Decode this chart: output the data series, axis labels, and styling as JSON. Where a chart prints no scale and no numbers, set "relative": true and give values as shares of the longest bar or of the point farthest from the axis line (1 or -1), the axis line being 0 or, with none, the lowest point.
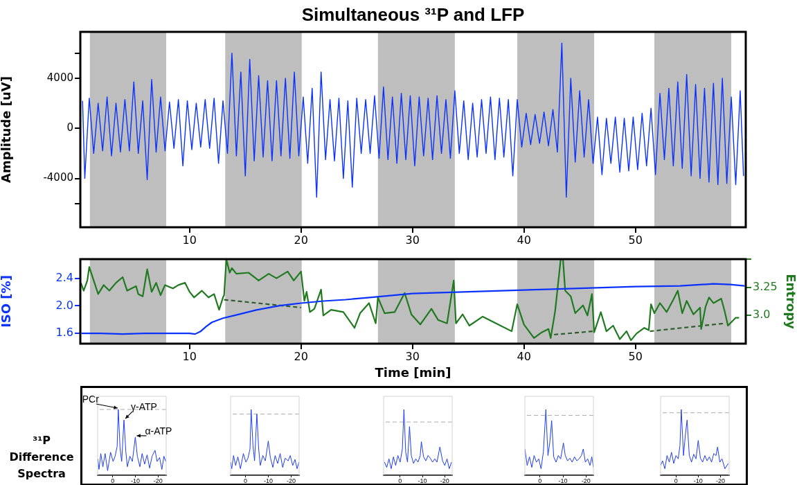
{
  "chart_data": [
    {
      "type": "line",
      "title": "Simultaneous ³¹P and LFP",
      "ylabel": "Amplitude [uV]",
      "marker": "none",
      "x": [
        0.4,
        0.6,
        1,
        1.4,
        1.8,
        2.2,
        2.6,
        3,
        3.4,
        3.8,
        4.2,
        4.6,
        5,
        5.4,
        5.8,
        6.2,
        6.6,
        7,
        7.4,
        7.8,
        8.2,
        8.6,
        9,
        9.4,
        9.8,
        10.2,
        10.6,
        11,
        11.4,
        11.8,
        12.2,
        12.6,
        13,
        13.4,
        13.8,
        14.2,
        14.6,
        15,
        15.4,
        15.8,
        16.2,
        16.6,
        17,
        17.4,
        17.8,
        18.2,
        18.6,
        19,
        19.4,
        19.8,
        20.2,
        20.6,
        21,
        21.4,
        21.8,
        22.2,
        22.6,
        23,
        23.4,
        23.8,
        24.2,
        24.6,
        25,
        25.4,
        25.8,
        26.2,
        26.6,
        27,
        27.4,
        27.8,
        28.2,
        28.6,
        29,
        29.4,
        29.8,
        30.2,
        30.6,
        31,
        31.4,
        31.8,
        32.2,
        32.6,
        33,
        33.4,
        33.8,
        34.2,
        34.6,
        35,
        35.4,
        35.8,
        36.2,
        36.6,
        37,
        37.4,
        37.8,
        38.2,
        38.6,
        39,
        39.4,
        39.8,
        40.2,
        40.6,
        41,
        41.4,
        41.8,
        42.2,
        42.6,
        43,
        43.4,
        43.8,
        44.2,
        44.6,
        45,
        45.4,
        45.8,
        46.2,
        46.6,
        47,
        47.4,
        47.8,
        48.2,
        48.6,
        49,
        49.4,
        49.8,
        50.2,
        50.6,
        51,
        51.4,
        51.8,
        52.2,
        52.6,
        53,
        53.4,
        53.8,
        54.2,
        54.6,
        55,
        55.4,
        55.8,
        56.2,
        56.6,
        57,
        57.4,
        57.8,
        58.2,
        58.6,
        59,
        59.4,
        59.7
      ],
      "series": [
        {
          "color": "#0a32ff",
          "values": [
            2200,
            -4000,
            2400,
            -2000,
            2000,
            -1800,
            2500,
            -2200,
            2000,
            -1900,
            2300,
            -1800,
            3700,
            -2000,
            2200,
            -4100,
            3900,
            -1900,
            2500,
            -1800,
            2100,
            -1600,
            2300,
            -3000,
            2200,
            -1700,
            2000,
            -1500,
            2300,
            -1600,
            2400,
            -2800,
            2200,
            -2000,
            6000,
            -2200,
            4500,
            -3800,
            5500,
            -2600,
            4200,
            -2300,
            3800,
            -2600,
            3800,
            -2200,
            4000,
            -2400,
            4500,
            -2200,
            2500,
            -2800,
            3200,
            -5500,
            4500,
            -2500,
            2300,
            -2600,
            2400,
            -4000,
            2200,
            -4700,
            2400,
            -2000,
            2300,
            -2000,
            2600,
            -2400,
            3300,
            -2500,
            2500,
            -2800,
            2800,
            -2500,
            2600,
            -3000,
            2500,
            -2200,
            2400,
            -2500,
            2600,
            -2000,
            2300,
            -2400,
            3000,
            -2000,
            2200,
            -2500,
            2000,
            -2300,
            2300,
            -2000,
            2500,
            -2500,
            2400,
            -2300,
            2300,
            -3800,
            2300,
            -1500,
            1200,
            -1300,
            1100,
            -1200,
            1300,
            -1400,
            1500,
            -1900,
            6800,
            -5500,
            4000,
            -2700,
            3000,
            -2300,
            2300,
            -2800,
            900,
            -3700,
            800,
            -2800,
            900,
            -3500,
            800,
            -3400,
            900,
            -3300,
            1200,
            -3000,
            1600,
            -3700,
            2800,
            -2500,
            3200,
            -3000,
            3700,
            -3200,
            4300,
            -3800,
            3500,
            -4000,
            3200,
            -4300,
            3600,
            -4500,
            4000,
            -4400,
            2500,
            -4500,
            3000,
            -3800
          ]
        }
      ],
      "xlim": [
        0.2,
        59.9
      ],
      "xticks": [
        10,
        20,
        30,
        40,
        50
      ],
      "ylim": [
        -7900,
        7700
      ],
      "yticks": [
        {
          "value": -6000,
          "label": null
        },
        -4000,
        0,
        4000,
        {
          "value": 6000,
          "label": null
        }
      ],
      "bands": [
        {
          "axis": "x",
          "from": 1.06,
          "to": 7.9,
          "color": "#bebebe"
        },
        {
          "axis": "x",
          "from": 13.2,
          "to": 20.06,
          "color": "#bebebe"
        },
        {
          "axis": "x",
          "from": 26.9,
          "to": 33.8,
          "color": "#bebebe"
        },
        {
          "axis": "x",
          "from": 39.4,
          "to": 46.3,
          "color": "#bebebe"
        },
        {
          "axis": "x",
          "from": 51.7,
          "to": 58.6,
          "color": "#bebebe"
        }
      ]
    },
    {
      "type": "line",
      "xlabel": "Time [min]",
      "ylabel": "ISO [%]",
      "y2label": "Entropy",
      "marker": "none",
      "series": [
        {
          "color": "#0a32ff",
          "x": [
            0.3,
            2,
            4,
            6,
            8,
            10,
            10.5,
            11,
            11.5,
            12,
            13,
            14,
            15,
            16,
            17,
            18,
            19,
            20,
            22,
            24,
            26,
            28,
            30,
            34,
            38,
            42,
            46,
            50,
            54,
            57,
            58.5,
            59.8
          ],
          "values": [
            1.6,
            1.6,
            1.59,
            1.6,
            1.6,
            1.6,
            1.59,
            1.63,
            1.7,
            1.76,
            1.82,
            1.86,
            1.9,
            1.94,
            1.97,
            2.0,
            2.02,
            2.04,
            2.07,
            2.09,
            2.12,
            2.15,
            2.18,
            2.2,
            2.22,
            2.24,
            2.26,
            2.28,
            2.29,
            2.32,
            2.31,
            2.29
          ]
        },
        {
          "color": "#1f7a1f",
          "axis": "y2",
          "x": [
            0.25,
            0.5,
            0.83,
            1.0,
            1.8,
            2.3,
            2.8,
            3.4,
            4.0,
            4.4,
            5.2,
            5.4,
            5.8,
            6.2,
            6.6,
            7.0,
            7.4,
            7.8,
            8.5,
            9.0,
            9.6,
            10.0,
            10.4,
            11.1,
            11.7,
            12.2,
            12.65,
            13.0,
            13.1,
            13.3,
            13.6,
            13.8,
            14.2,
            15.3,
            16.2,
            17.1,
            17.8,
            18.8,
            19.35,
            20.0,
            20.3,
            20.5,
            20.8,
            21.2,
            21.8,
            22.0,
            22.7,
            23.8,
            24.8,
            25.3,
            26.1,
            26.7,
            26.9,
            27.5,
            28.4,
            29.3,
            29.9,
            30.7,
            31.7,
            32.3,
            33.1,
            33.7,
            33.9,
            34.5,
            35.1,
            36.3,
            37.5,
            38.9,
            39.4,
            40.0,
            40.9,
            41.6,
            42.2,
            42.4,
            42.8,
            43.3,
            43.5,
            43.7,
            44.2,
            44.6,
            45.3,
            45.7,
            46.1,
            46.3,
            46.9,
            47.4,
            48.0,
            48.6,
            49.2,
            49.6,
            50.1,
            50.8,
            51.2,
            51.4,
            51.7,
            52.2,
            52.8,
            53.4,
            53.8,
            54.2,
            54.6,
            55.2,
            55.8,
            55.9,
            56.3,
            56.6,
            57.0,
            57.7,
            58.0,
            58.3,
            58.5,
            59.0,
            59.3
          ],
          "values": [
            3.29,
            3.22,
            3.31,
            3.43,
            3.19,
            3.27,
            3.22,
            3.29,
            3.34,
            3.22,
            3.26,
            3.19,
            3.17,
            3.41,
            3.21,
            3.29,
            3.18,
            3.27,
            3.24,
            3.27,
            3.29,
            3.21,
            3.16,
            3.22,
            3.16,
            3.19,
            3.05,
            3.16,
            3.18,
            3.5,
            3.38,
            3.42,
            3.37,
            3.38,
            3.31,
            3.37,
            3.33,
            3.39,
            3.31,
            3.39,
            3.13,
            3.21,
            3.03,
            3.06,
            3.23,
            3.0,
            3.05,
            3.03,
            2.89,
            3.02,
            3.11,
            2.93,
            3.16,
            3.02,
            3.03,
            3.2,
            3.01,
            2.92,
            3.06,
            2.96,
            2.93,
            3.31,
            2.93,
            3.01,
            2.91,
            2.99,
            2.93,
            2.86,
            3.1,
            2.92,
            2.8,
            2.85,
            2.88,
            2.8,
            3.04,
            3.5,
            3.5,
            3.22,
            3.17,
            3.02,
            3.09,
            3.0,
            3.19,
            2.85,
            3.03,
            2.86,
            2.91,
            2.79,
            2.86,
            2.78,
            2.84,
            2.89,
            2.87,
            3.1,
            3.02,
            3.11,
            3.03,
            3.14,
            3.22,
            3.02,
            3.13,
            3.01,
            3.07,
            2.88,
            3.08,
            3.16,
            3.11,
            3.15,
            3.04,
            2.91,
            2.93,
            2.98,
            2.98
          ]
        },
        {
          "color": "#2e5e2e",
          "axis": "y2",
          "line_style": "dashed",
          "x": [
            13.1,
            20.0,
            31,
            42.7,
            46.2,
            49,
            51.3,
            58.0
          ],
          "values": [
            3.14,
            3.07,
            null,
            2.83,
            2.86,
            null,
            2.86,
            2.93
          ]
        }
      ],
      "xlim": [
        0.2,
        59.9
      ],
      "xticks": [
        10,
        20,
        30,
        40,
        50
      ],
      "ylim": [
        1.45,
        2.68
      ],
      "yticks": [
        1.6,
        {
          "value": 2,
          "label": "2.0"
        },
        2.4
      ],
      "y2lim": [
        2.75,
        3.5
      ],
      "y2ticks": [
        {
          "value": 3,
          "label": "3.0"
        },
        3.25,
        {
          "value": 3.5,
          "label": null
        }
      ],
      "bands": [
        {
          "axis": "x",
          "from": 1.06,
          "to": 7.9,
          "color": "#bebebe"
        },
        {
          "axis": "x",
          "from": 13.2,
          "to": 20.06,
          "color": "#bebebe"
        },
        {
          "axis": "x",
          "from": 26.9,
          "to": 33.8,
          "color": "#bebebe"
        },
        {
          "axis": "x",
          "from": 39.4,
          "to": 46.3,
          "color": "#bebebe"
        },
        {
          "axis": "x",
          "from": 51.7,
          "to": 58.6,
          "color": "#bebebe"
        }
      ]
    },
    {
      "type": "line",
      "relative": true,
      "marker": "none",
      "ylabel": "³¹P Difference Spectra",
      "x": [
        6.5,
        6.0,
        5.2,
        4.3,
        3.3,
        2.2,
        0.9,
        -0.2,
        -1.1,
        -2.0,
        -2.5,
        -3.3,
        -4.0,
        -5.0,
        -5.8,
        -6.5,
        -7.6,
        -8.7,
        -10.0,
        -10.9,
        -12.0,
        -13.0,
        -14.1,
        -15.2,
        -16.3,
        -17.4,
        -18.7,
        -19.6,
        -20.7,
        -21.7,
        -22.6,
        -23.4
      ],
      "series": [
        {
          "color": "#1f3cf0",
          "values": [
            0.25,
            0.09,
            0.33,
            0.13,
            0.33,
            0.07,
            0.35,
            0.21,
            0.29,
            0.44,
            1,
            0.4,
            0.21,
            0.84,
            0.37,
            0.13,
            0.29,
            0.21,
            0.58,
            0.29,
            0.13,
            0.33,
            0.17,
            0.31,
            0.11,
            0.29,
            0.38,
            0.21,
            0.27,
            0.09,
            0.29,
            0.21
          ]
        }
      ],
      "xlim": [
        6.6,
        -23.6
      ],
      "xticks": [
        0,
        -10,
        -20
      ],
      "ref_lines": [
        {
          "axis": "y",
          "value": 1,
          "color": "#aaaaaa",
          "line_style": "dashed"
        }
      ],
      "annotations": [
        {
          "text": "PCr",
          "x": -2.5,
          "y": 1
        },
        {
          "text": "γ-ATP",
          "x": -5.0,
          "y": 0.84
        },
        {
          "text": "α-ATP",
          "x": -10.0,
          "y": 0.58
        }
      ]
    },
    {
      "type": "line",
      "relative": true,
      "marker": "none",
      "x": [
        6.5,
        6.0,
        5.2,
        4.3,
        3.3,
        2.2,
        0.9,
        -0.2,
        -1.1,
        -2.0,
        -2.5,
        -3.3,
        -4.0,
        -5.0,
        -5.8,
        -6.5,
        -7.6,
        -8.7,
        -10.0,
        -10.9,
        -12.0,
        -13.0,
        -14.1,
        -15.2,
        -16.3,
        -17.4,
        -18.7,
        -19.6,
        -20.7,
        -21.7,
        -22.6,
        -23.4
      ],
      "series": [
        {
          "color": "#1f3cf0",
          "values": [
            0.2,
            0.1,
            0.3,
            0.15,
            0.28,
            0.1,
            0.33,
            0.2,
            0.26,
            0.4,
            1.0,
            0.45,
            0.22,
            0.93,
            0.4,
            0.15,
            0.3,
            0.22,
            0.52,
            0.27,
            0.12,
            0.3,
            0.18,
            0.33,
            0.12,
            0.26,
            0.22,
            0.3,
            0.15,
            0.24,
            0.1,
            0.2
          ]
        }
      ],
      "xlim": [
        6.5,
        -23.5
      ],
      "xticks": [
        0,
        -10,
        -20
      ],
      "ref_lines": [
        {
          "axis": "y",
          "value": 0.93,
          "color": "#aaaaaa",
          "line_style": "dashed"
        }
      ]
    },
    {
      "type": "line",
      "relative": true,
      "marker": "none",
      "x": [
        7,
        6,
        5,
        4,
        3,
        2,
        1,
        0,
        -1,
        -1.7,
        -2.5,
        -3.3,
        -4.2,
        -5,
        -6,
        -7,
        -8,
        -9,
        -9.5,
        -10.5,
        -11.5,
        -12.5,
        -13.5,
        -14.5,
        -15.5,
        -16.5,
        -17.8,
        -19,
        -20,
        -21,
        -22,
        -23
      ],
      "series": [
        {
          "color": "#1f3cf0",
          "values": [
            0.2,
            0.12,
            0.25,
            0.1,
            0.28,
            0.15,
            0.3,
            0.2,
            0.4,
            1.0,
            0.35,
            0.2,
            0.74,
            0.3,
            0.18,
            0.25,
            0.2,
            0.3,
            0.51,
            0.28,
            0.22,
            0.3,
            0.26,
            0.2,
            0.25,
            0.2,
            0.43,
            0.22,
            0.15,
            0.25,
            0.1,
            0.2
          ]
        }
      ],
      "xlim": [
        7.4,
        -23.3
      ],
      "xticks": [
        0,
        -10,
        -20
      ],
      "ref_lines": [
        {
          "axis": "y",
          "value": 0.81,
          "color": "#aaaaaa",
          "line_style": "dashed"
        }
      ]
    },
    {
      "type": "line",
      "relative": true,
      "marker": "none",
      "x": [
        6.5,
        5.5,
        4.5,
        3.5,
        2.5,
        1.5,
        0.5,
        -0.5,
        -1.5,
        -2.6,
        -3.5,
        -4.3,
        -5.1,
        -6,
        -7,
        -8,
        -9,
        -10.2,
        -11,
        -12,
        -13,
        -14,
        -15,
        -16,
        -17,
        -18,
        -18.8,
        -19.7,
        -20.7,
        -21.7,
        -22.5,
        -23.2
      ],
      "series": [
        {
          "color": "#1f3cf0",
          "values": [
            0.4,
            0.15,
            0.28,
            0.12,
            0.3,
            0.2,
            0.25,
            0.1,
            0.35,
            1.0,
            0.3,
            0.5,
            0.83,
            0.28,
            0.2,
            0.3,
            0.25,
            0.49,
            0.3,
            0.22,
            0.26,
            0.2,
            0.28,
            0.22,
            0.25,
            0.3,
            0.4,
            0.2,
            0.25,
            0.15,
            0.28,
            0.12
          ]
        }
      ],
      "xlim": [
        6.5,
        -23.2
      ],
      "xticks": [
        0,
        -10,
        -20
      ],
      "ref_lines": [
        {
          "axis": "y",
          "value": 0.91,
          "color": "#aaaaaa",
          "line_style": "dashed"
        }
      ]
    },
    {
      "type": "line",
      "relative": true,
      "marker": "none",
      "x": [
        6.9,
        6,
        5,
        4,
        3,
        2,
        1,
        0,
        -1,
        -1.8,
        -2.4,
        -3.4,
        -4.2,
        -5,
        -6,
        -7,
        -8,
        -9,
        -10,
        -11,
        -12,
        -13,
        -14,
        -15,
        -16,
        -17,
        -18,
        -18.7,
        -19.7,
        -20.7,
        -22,
        -23.5
      ],
      "series": [
        {
          "color": "#1f3cf0",
          "values": [
            0.15,
            0.22,
            0.1,
            0.3,
            0.2,
            0.35,
            0.18,
            0.3,
            0.25,
            0.45,
            1.0,
            0.3,
            0.6,
            0.84,
            0.3,
            0.2,
            0.32,
            0.25,
            0.53,
            0.26,
            0.2,
            0.3,
            0.22,
            0.28,
            0.2,
            0.33,
            0.3,
            0.43,
            0.2,
            0.25,
            0.1,
            0.18
          ]
        }
      ],
      "xlim": [
        6.9,
        -23.9
      ],
      "xticks": [
        0,
        -10,
        -20
      ],
      "ref_lines": [
        {
          "axis": "y",
          "value": 0.95,
          "color": "#aaaaaa",
          "line_style": "dashed"
        }
      ]
    }
  ]
}
